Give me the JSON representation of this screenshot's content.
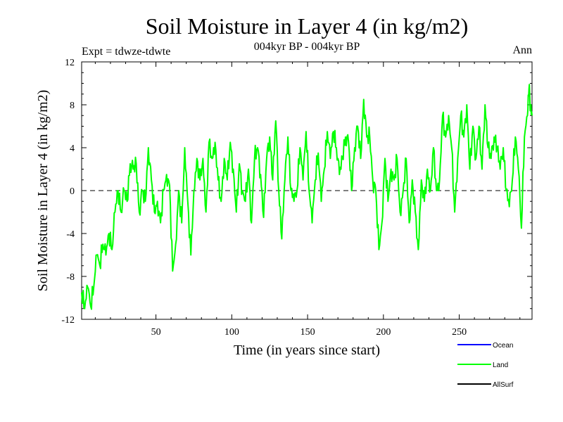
{
  "chart_data": {
    "type": "line",
    "title": "Soil Moisture in Layer 4 (in kg/m2)",
    "subtitle": "004kyr BP - 004kyr BP",
    "expt_label": "Expt = tdwze-tdwte",
    "season_label": "Ann",
    "xlabel": "Time (in years since start)",
    "ylabel": "Soil Moisture in Layer 4 (in kg/m2)",
    "xlim": [
      1,
      298
    ],
    "ylim": [
      -12,
      12
    ],
    "xticks": [
      50,
      100,
      150,
      200,
      250
    ],
    "xtick_labels": [
      "50",
      "100",
      "150",
      "200",
      "250"
    ],
    "yticks": [
      -12,
      -8,
      -4,
      0,
      4,
      8,
      12
    ],
    "ytick_labels": [
      "-12",
      "-8",
      "-4",
      "0",
      "4",
      "8",
      "12"
    ],
    "zero_line": "dashed",
    "legend_position": "bottom-right",
    "legend": [
      {
        "name": "Ocean",
        "color": "#0000ff"
      },
      {
        "name": "Land",
        "color": "#00ff00"
      },
      {
        "name": "AllSurf",
        "color": "#000000"
      }
    ],
    "series": [
      {
        "name": "Land",
        "color": "#00ff00",
        "keypoints": [
          [
            1,
            -9.5
          ],
          [
            3,
            -11
          ],
          [
            5,
            -9
          ],
          [
            7,
            -10.8
          ],
          [
            9,
            -9
          ],
          [
            11,
            -6
          ],
          [
            13,
            -7
          ],
          [
            15,
            -5
          ],
          [
            17,
            -6
          ],
          [
            19,
            -4
          ],
          [
            21,
            -5.5
          ],
          [
            23,
            -2
          ],
          [
            25,
            0
          ],
          [
            27,
            -2
          ],
          [
            29,
            0
          ],
          [
            31,
            -1
          ],
          [
            33,
            2.5
          ],
          [
            35,
            2
          ],
          [
            37,
            2.5
          ],
          [
            39,
            -2
          ],
          [
            41,
            0
          ],
          [
            43,
            -1
          ],
          [
            45,
            4
          ],
          [
            47,
            1
          ],
          [
            49,
            -2
          ],
          [
            51,
            -1
          ],
          [
            53,
            -3
          ],
          [
            55,
            0
          ],
          [
            57,
            1.5
          ],
          [
            59,
            0.5
          ],
          [
            61,
            -7.5
          ],
          [
            63,
            -5
          ],
          [
            65,
            0
          ],
          [
            67,
            -3
          ],
          [
            69,
            4
          ],
          [
            71,
            -1
          ],
          [
            73,
            -6
          ],
          [
            75,
            0
          ],
          [
            77,
            3
          ],
          [
            79,
            1
          ],
          [
            81,
            3
          ],
          [
            83,
            -2
          ],
          [
            85,
            4.5
          ],
          [
            87,
            3
          ],
          [
            89,
            4.5
          ],
          [
            91,
            1
          ],
          [
            93,
            -1
          ],
          [
            95,
            3
          ],
          [
            97,
            1
          ],
          [
            99,
            4.5
          ],
          [
            101,
            2
          ],
          [
            103,
            -2
          ],
          [
            105,
            2.5
          ],
          [
            107,
            0
          ],
          [
            109,
            -1
          ],
          [
            111,
            2
          ],
          [
            113,
            -3
          ],
          [
            115,
            3
          ],
          [
            117,
            4
          ],
          [
            119,
            1.5
          ],
          [
            121,
            -2.5
          ],
          [
            123,
            3
          ],
          [
            125,
            5
          ],
          [
            127,
            1
          ],
          [
            129,
            6.5
          ],
          [
            131,
            0
          ],
          [
            133,
            -4.5
          ],
          [
            135,
            1
          ],
          [
            137,
            5
          ],
          [
            139,
            0
          ],
          [
            141,
            -1
          ],
          [
            143,
            0
          ],
          [
            145,
            4
          ],
          [
            147,
            1
          ],
          [
            149,
            5.5
          ],
          [
            151,
            0
          ],
          [
            153,
            -3
          ],
          [
            155,
            1
          ],
          [
            157,
            3.5
          ],
          [
            159,
            -1
          ],
          [
            161,
            2
          ],
          [
            163,
            5.5
          ],
          [
            165,
            3
          ],
          [
            167,
            5.5
          ],
          [
            169,
            4
          ],
          [
            171,
            1.5
          ],
          [
            173,
            3
          ],
          [
            175,
            5
          ],
          [
            177,
            4.5
          ],
          [
            179,
            0
          ],
          [
            181,
            4
          ],
          [
            183,
            6
          ],
          [
            185,
            3
          ],
          [
            187,
            8.5
          ],
          [
            189,
            5
          ],
          [
            191,
            5
          ],
          [
            193,
            1
          ],
          [
            195,
            0
          ],
          [
            197,
            -5.5
          ],
          [
            199,
            -3
          ],
          [
            201,
            3
          ],
          [
            203,
            -1
          ],
          [
            205,
            2
          ],
          [
            207,
            1
          ],
          [
            209,
            3
          ],
          [
            211,
            -2
          ],
          [
            213,
            0
          ],
          [
            215,
            3
          ],
          [
            217,
            -3
          ],
          [
            219,
            1
          ],
          [
            221,
            -2
          ],
          [
            223,
            -5.5
          ],
          [
            225,
            1
          ],
          [
            227,
            -1
          ],
          [
            229,
            2
          ],
          [
            231,
            0
          ],
          [
            233,
            4
          ],
          [
            235,
            0
          ],
          [
            237,
            1
          ],
          [
            239,
            7
          ],
          [
            241,
            5
          ],
          [
            243,
            7
          ],
          [
            245,
            4
          ],
          [
            247,
            -2
          ],
          [
            249,
            3
          ],
          [
            251,
            7
          ],
          [
            253,
            5
          ],
          [
            255,
            8
          ],
          [
            257,
            2
          ],
          [
            259,
            6
          ],
          [
            261,
            3
          ],
          [
            263,
            6
          ],
          [
            265,
            2
          ],
          [
            267,
            8
          ],
          [
            269,
            4
          ],
          [
            271,
            3
          ],
          [
            273,
            5
          ],
          [
            275,
            4
          ],
          [
            277,
            2
          ],
          [
            279,
            4
          ],
          [
            281,
            0
          ],
          [
            283,
            -1.5
          ],
          [
            285,
            1
          ],
          [
            287,
            5
          ],
          [
            289,
            2
          ],
          [
            291,
            -3.5
          ],
          [
            293,
            5
          ],
          [
            295,
            7
          ],
          [
            296,
            9.5
          ],
          [
            297,
            8
          ],
          [
            298,
            7
          ]
        ]
      }
    ]
  }
}
